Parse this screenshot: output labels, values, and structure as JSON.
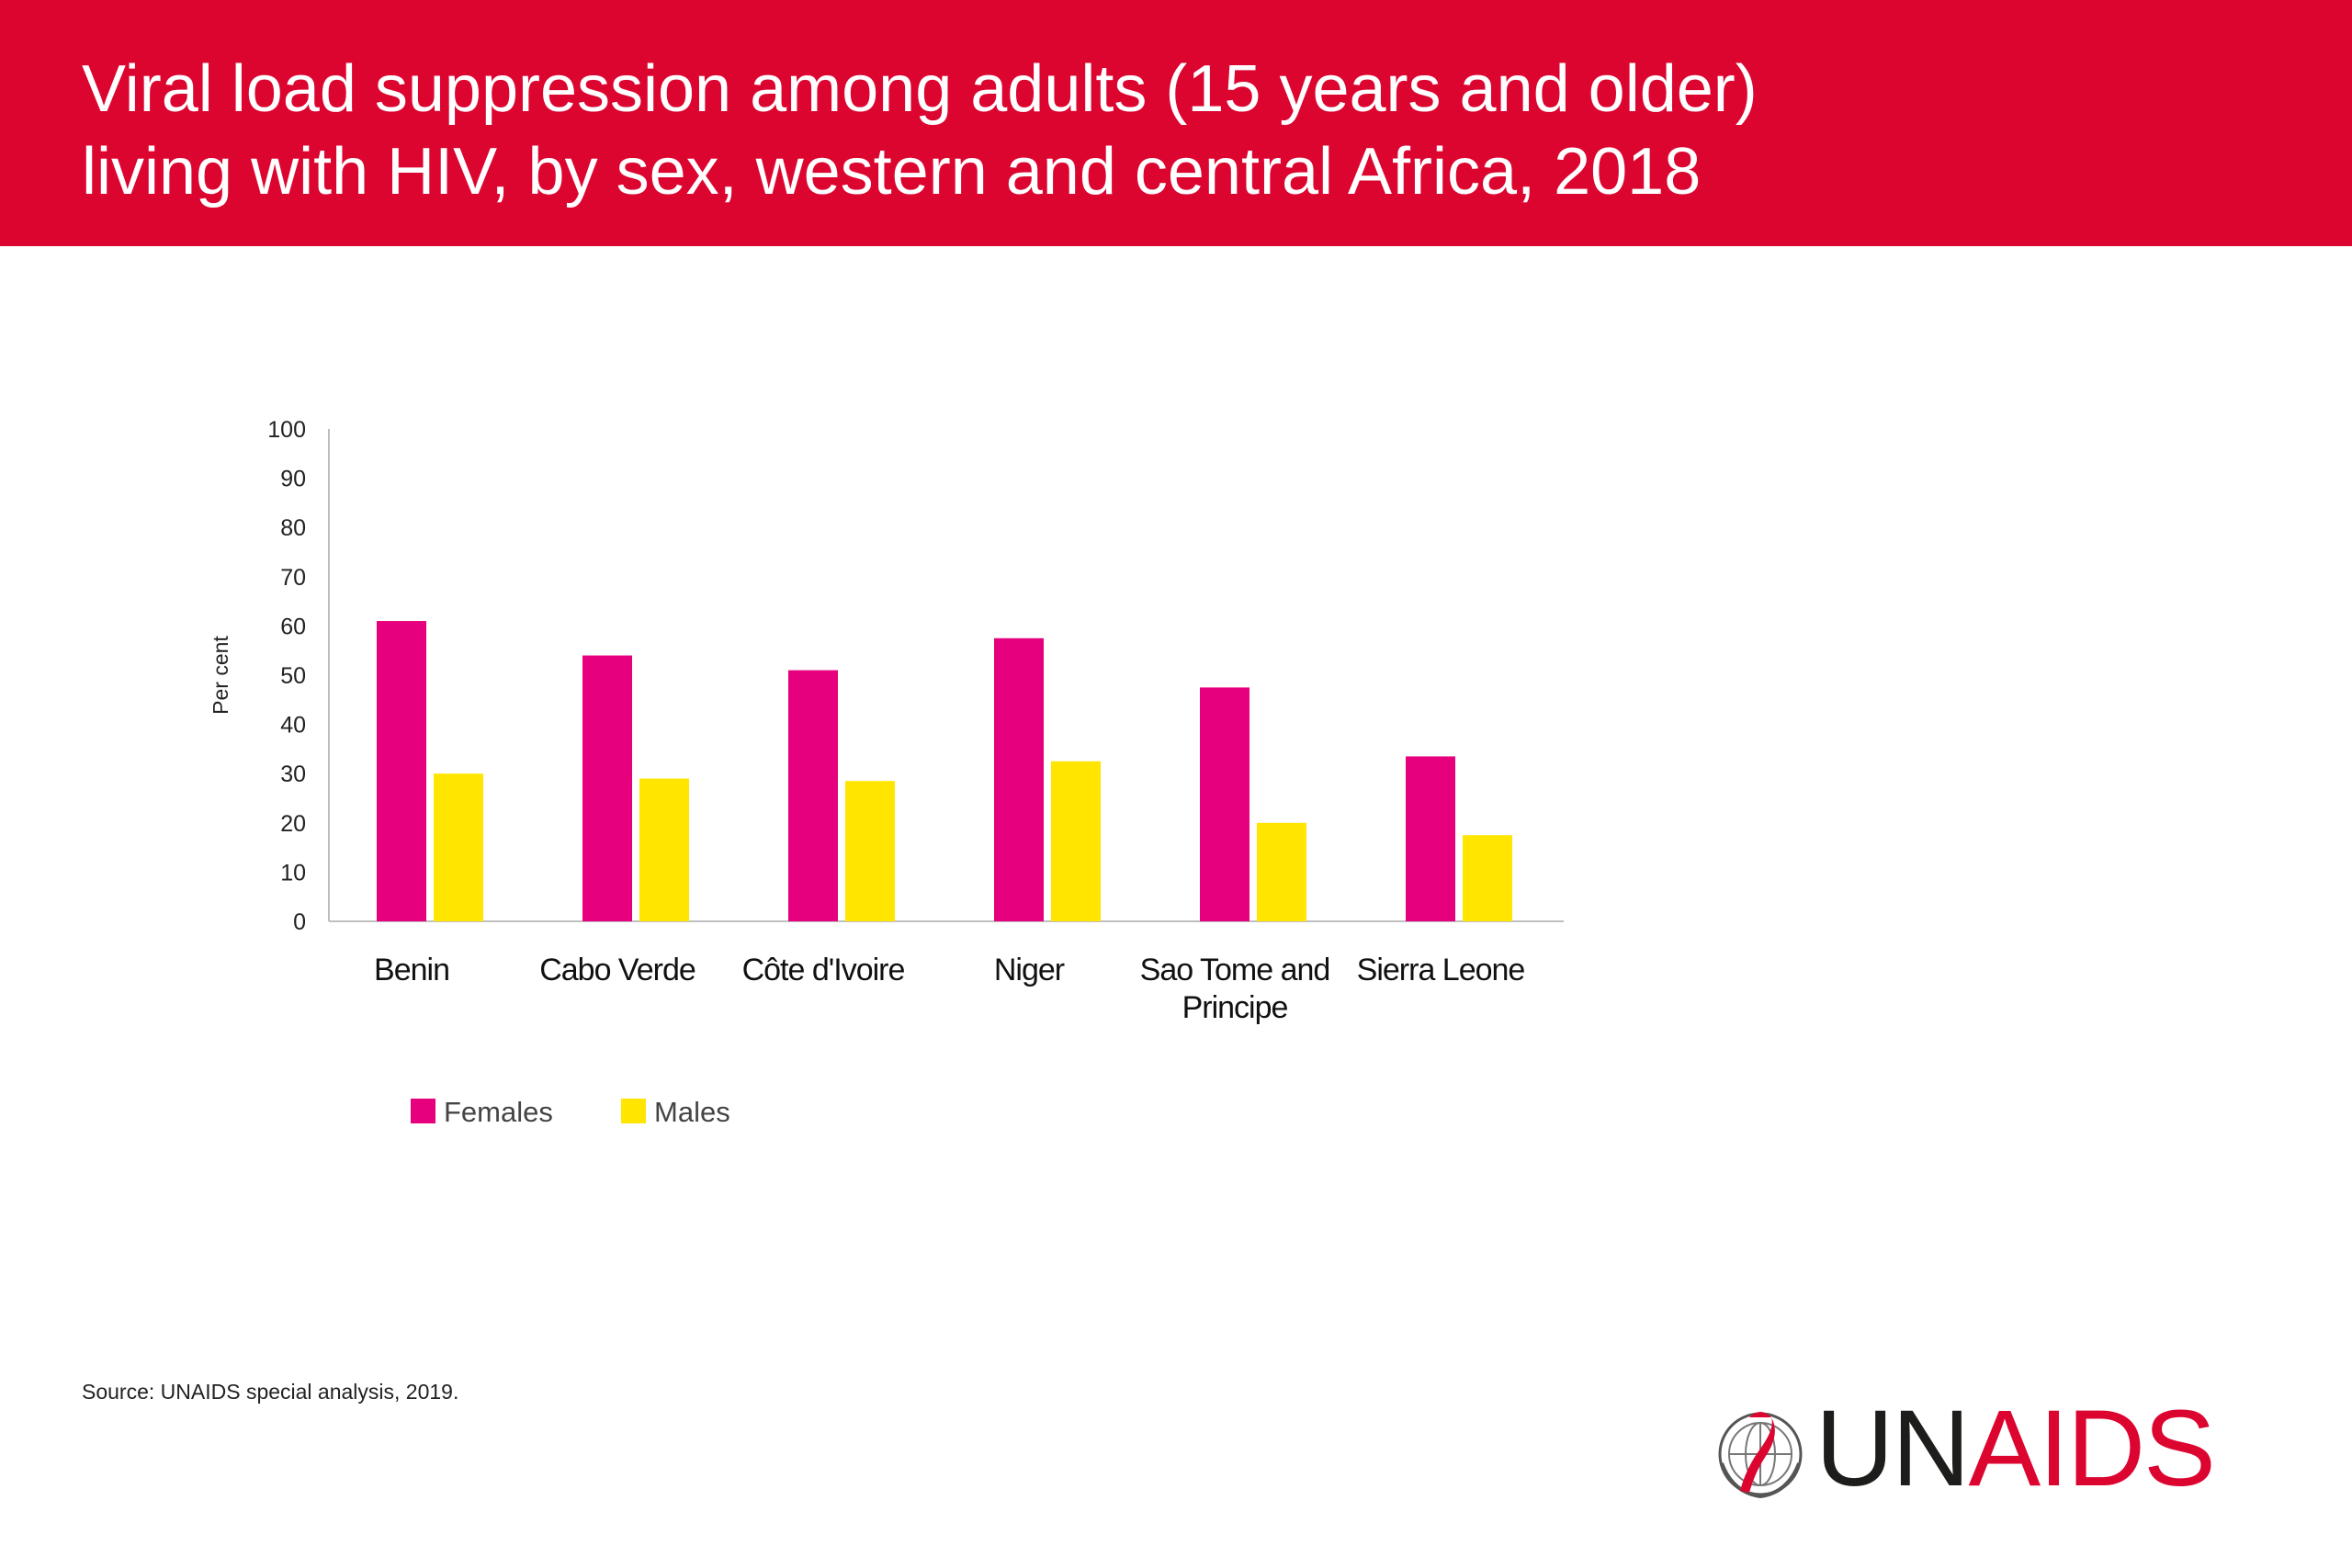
{
  "header": {
    "title_line1": "Viral load suppression among adults (15 years and older)",
    "title_line2": "living with HIV, by sex, western and central Africa, 2018",
    "background_color": "#dc0530"
  },
  "chart_data": {
    "type": "bar",
    "title": "Viral load suppression among adults (15 years and older) living with HIV, by sex, western and central Africa, 2018",
    "ylabel": "Per cent",
    "xlabel": "",
    "ylim": [
      0,
      100
    ],
    "yticks": [
      "0",
      "10",
      "20",
      "30",
      "40",
      "50",
      "60",
      "70",
      "80",
      "90",
      "100"
    ],
    "grid": false,
    "legend_position": "bottom-left",
    "categories": [
      [
        "Benin"
      ],
      [
        "Cabo Verde"
      ],
      [
        "Côte d'Ivoire"
      ],
      [
        "Niger"
      ],
      [
        "Sao Tome and",
        "Principe"
      ],
      [
        "Sierra Leone"
      ]
    ],
    "series": [
      {
        "name": "Females",
        "color": "#e6007e",
        "values": [
          61,
          54,
          51,
          57.5,
          47.5,
          33.5
        ]
      },
      {
        "name": "Males",
        "color": "#ffe500",
        "values": [
          30,
          29,
          28.5,
          32.5,
          20,
          17.5
        ]
      }
    ]
  },
  "footer": {
    "source": "Source: UNAIDS special analysis, 2019.",
    "logo_un": "UN",
    "logo_aids": "AIDS",
    "logo_icon": "un-emblem-ribbon-icon"
  }
}
